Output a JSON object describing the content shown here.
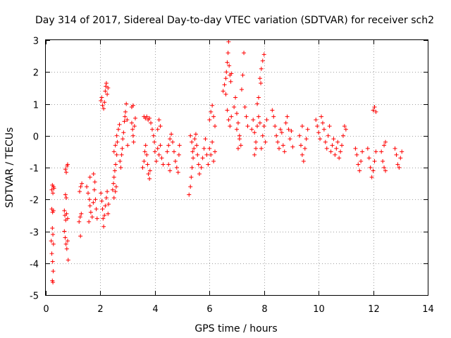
{
  "chart_data": {
    "type": "scatter",
    "title": "Day 314 of 2017, Sidereal Day-to-day VTEC variation (SDTVAR) for receiver sch2",
    "xlabel": "GPS time / hours",
    "ylabel": "SDTVAR / TECUs",
    "xlim": [
      0,
      14
    ],
    "ylim": [
      -5,
      3
    ],
    "xticks": [
      0,
      2,
      4,
      6,
      8,
      10,
      12,
      14
    ],
    "yticks": [
      -5,
      -4,
      -3,
      -2,
      -1,
      0,
      1,
      2,
      3
    ],
    "xtick_labels": [
      "0",
      "2",
      "4",
      "6",
      "8",
      "10",
      "12",
      "14"
    ],
    "ytick_labels": [
      "-5",
      "-4",
      "-3",
      "-2",
      "-1",
      "0",
      "1",
      "2",
      "3"
    ],
    "grid": true,
    "marker": "+",
    "color": "#ff0000",
    "series": [
      {
        "name": "sch2",
        "points": [
          [
            0.22,
            -1.7
          ],
          [
            0.24,
            -1.55
          ],
          [
            0.26,
            -1.8
          ],
          [
            0.28,
            -1.6
          ],
          [
            0.3,
            -1.65
          ],
          [
            0.22,
            -2.3
          ],
          [
            0.25,
            -2.4
          ],
          [
            0.28,
            -2.35
          ],
          [
            0.2,
            -3.3
          ],
          [
            0.24,
            -2.9
          ],
          [
            0.26,
            -3.1
          ],
          [
            0.28,
            -3.4
          ],
          [
            0.22,
            -3.7
          ],
          [
            0.25,
            -3.95
          ],
          [
            0.27,
            -4.25
          ],
          [
            0.24,
            -4.55
          ],
          [
            0.26,
            -4.6
          ],
          [
            0.72,
            -1.05
          ],
          [
            0.75,
            -1.15
          ],
          [
            0.78,
            -0.95
          ],
          [
            0.8,
            -0.9
          ],
          [
            0.68,
            -2.35
          ],
          [
            0.7,
            -2.5
          ],
          [
            0.73,
            -2.65
          ],
          [
            0.76,
            -2.45
          ],
          [
            0.8,
            -2.6
          ],
          [
            0.68,
            -3.0
          ],
          [
            0.71,
            -3.2
          ],
          [
            0.74,
            -3.4
          ],
          [
            0.77,
            -3.55
          ],
          [
            0.8,
            -3.3
          ],
          [
            0.82,
            -3.9
          ],
          [
            0.72,
            -1.85
          ],
          [
            0.75,
            -1.95
          ],
          [
            1.22,
            -2.7
          ],
          [
            1.26,
            -2.55
          ],
          [
            1.3,
            -2.45
          ],
          [
            1.24,
            -1.75
          ],
          [
            1.28,
            -1.6
          ],
          [
            1.32,
            -1.5
          ],
          [
            1.27,
            -3.15
          ],
          [
            1.5,
            -1.6
          ],
          [
            1.55,
            -1.8
          ],
          [
            1.6,
            -2.0
          ],
          [
            1.62,
            -2.2
          ],
          [
            1.65,
            -2.4
          ],
          [
            1.7,
            -2.55
          ],
          [
            1.58,
            -2.7
          ],
          [
            1.62,
            -1.3
          ],
          [
            1.75,
            -1.2
          ],
          [
            1.78,
            -1.7
          ],
          [
            1.82,
            -2.0
          ],
          [
            1.85,
            -2.3
          ],
          [
            1.88,
            -2.6
          ],
          [
            1.74,
            -2.1
          ],
          [
            1.8,
            -1.45
          ],
          [
            2.02,
            -1.8
          ],
          [
            2.05,
            -2.05
          ],
          [
            2.08,
            -2.3
          ],
          [
            2.1,
            -2.6
          ],
          [
            2.12,
            -2.85
          ],
          [
            2.15,
            -2.5
          ],
          [
            2.18,
            -2.2
          ],
          [
            2.22,
            -1.95
          ],
          [
            2.25,
            -1.75
          ],
          [
            2.28,
            -2.45
          ],
          [
            2.3,
            -2.15
          ],
          [
            2.02,
            1.1
          ],
          [
            2.05,
            1.2
          ],
          [
            2.08,
            0.95
          ],
          [
            2.12,
            0.85
          ],
          [
            2.15,
            1.05
          ],
          [
            2.18,
            1.4
          ],
          [
            2.2,
            1.55
          ],
          [
            2.22,
            1.65
          ],
          [
            2.25,
            1.3
          ],
          [
            2.28,
            1.5
          ],
          [
            2.45,
            -1.7
          ],
          [
            2.48,
            -1.5
          ],
          [
            2.5,
            -1.3
          ],
          [
            2.53,
            -1.1
          ],
          [
            2.56,
            -0.9
          ],
          [
            2.6,
            -0.6
          ],
          [
            2.5,
            -1.95
          ],
          [
            2.55,
            -1.75
          ],
          [
            2.58,
            -1.6
          ],
          [
            2.5,
            -0.5
          ],
          [
            2.55,
            -0.3
          ],
          [
            2.6,
            0.0
          ],
          [
            2.62,
            -0.2
          ],
          [
            2.66,
            0.2
          ],
          [
            2.7,
            0.35
          ],
          [
            2.72,
            -0.8
          ],
          [
            2.75,
            -1.0
          ],
          [
            2.78,
            -0.6
          ],
          [
            2.8,
            -0.4
          ],
          [
            2.82,
            -0.1
          ],
          [
            2.85,
            0.1
          ],
          [
            2.88,
            0.45
          ],
          [
            2.9,
            0.6
          ],
          [
            2.92,
            0.75
          ],
          [
            2.95,
            1.0
          ],
          [
            2.98,
            0.5
          ],
          [
            3.0,
            -0.3
          ],
          [
            3.15,
            0.4
          ],
          [
            3.18,
            0.2
          ],
          [
            3.2,
            0.0
          ],
          [
            3.22,
            -0.2
          ],
          [
            3.25,
            0.3
          ],
          [
            3.28,
            0.55
          ],
          [
            3.15,
            0.9
          ],
          [
            3.2,
            0.95
          ],
          [
            3.55,
            -1.0
          ],
          [
            3.6,
            -0.8
          ],
          [
            3.63,
            -0.5
          ],
          [
            3.66,
            -0.3
          ],
          [
            3.7,
            -0.6
          ],
          [
            3.73,
            -0.9
          ],
          [
            3.76,
            -1.2
          ],
          [
            3.8,
            -1.35
          ],
          [
            3.82,
            -1.1
          ],
          [
            3.6,
            0.6
          ],
          [
            3.65,
            0.55
          ],
          [
            3.7,
            0.6
          ],
          [
            3.75,
            0.5
          ],
          [
            3.8,
            0.55
          ],
          [
            3.85,
            0.4
          ],
          [
            3.9,
            0.2
          ],
          [
            3.95,
            0.0
          ],
          [
            3.98,
            -0.2
          ],
          [
            4.0,
            -0.5
          ],
          [
            4.05,
            -0.8
          ],
          [
            4.1,
            -0.4
          ],
          [
            4.15,
            -0.6
          ],
          [
            4.2,
            -0.3
          ],
          [
            4.25,
            -0.7
          ],
          [
            4.3,
            -0.9
          ],
          [
            4.1,
            0.2
          ],
          [
            4.15,
            0.5
          ],
          [
            4.2,
            0.3
          ],
          [
            4.45,
            -0.5
          ],
          [
            4.5,
            -0.3
          ],
          [
            4.55,
            -0.1
          ],
          [
            4.6,
            0.05
          ],
          [
            4.65,
            -0.2
          ],
          [
            4.7,
            -0.5
          ],
          [
            4.75,
            -0.8
          ],
          [
            4.8,
            -1.0
          ],
          [
            4.85,
            -1.15
          ],
          [
            4.88,
            -0.6
          ],
          [
            4.9,
            -0.3
          ],
          [
            4.5,
            -0.9
          ],
          [
            4.55,
            -1.1
          ],
          [
            5.25,
            -1.85
          ],
          [
            5.3,
            -1.6
          ],
          [
            5.33,
            -1.3
          ],
          [
            5.36,
            -1.0
          ],
          [
            5.4,
            -0.7
          ],
          [
            5.43,
            -0.4
          ],
          [
            5.46,
            -0.1
          ],
          [
            5.5,
            0.05
          ],
          [
            5.53,
            -0.3
          ],
          [
            5.56,
            -0.6
          ],
          [
            5.6,
            -0.9
          ],
          [
            5.63,
            -1.2
          ],
          [
            5.3,
            0.0
          ],
          [
            5.35,
            -0.2
          ],
          [
            5.38,
            -0.5
          ],
          [
            5.7,
            -1.0
          ],
          [
            5.75,
            -0.7
          ],
          [
            5.8,
            -0.4
          ],
          [
            5.85,
            -0.1
          ],
          [
            5.9,
            -0.6
          ],
          [
            5.95,
            -0.9
          ],
          [
            6.0,
            0.5
          ],
          [
            6.05,
            0.75
          ],
          [
            6.1,
            0.95
          ],
          [
            6.15,
            0.6
          ],
          [
            6.2,
            0.3
          ],
          [
            6.0,
            -0.4
          ],
          [
            6.05,
            -0.6
          ],
          [
            6.1,
            -0.2
          ],
          [
            6.15,
            -0.8
          ],
          [
            6.2,
            -0.5
          ],
          [
            6.5,
            1.4
          ],
          [
            6.55,
            1.6
          ],
          [
            6.6,
            1.8
          ],
          [
            6.62,
            2.0
          ],
          [
            6.65,
            2.3
          ],
          [
            6.68,
            2.6
          ],
          [
            6.7,
            2.95
          ],
          [
            6.72,
            2.2
          ],
          [
            6.75,
            1.9
          ],
          [
            6.78,
            1.7
          ],
          [
            6.8,
            1.95
          ],
          [
            6.6,
            1.3
          ],
          [
            6.65,
            0.8
          ],
          [
            6.7,
            0.5
          ],
          [
            6.75,
            0.3
          ],
          [
            6.8,
            0.6
          ],
          [
            6.9,
            0.9
          ],
          [
            6.95,
            1.2
          ],
          [
            7.0,
            0.7
          ],
          [
            7.05,
            0.4
          ],
          [
            7.1,
            -0.1
          ],
          [
            7.15,
            -0.3
          ],
          [
            7.0,
            0.2
          ],
          [
            7.05,
            -0.4
          ],
          [
            7.1,
            0.0
          ],
          [
            7.18,
            1.45
          ],
          [
            7.22,
            1.9
          ],
          [
            7.26,
            2.6
          ],
          [
            7.3,
            0.9
          ],
          [
            7.35,
            0.6
          ],
          [
            7.4,
            0.3
          ],
          [
            7.55,
            0.2
          ],
          [
            7.6,
            0.5
          ],
          [
            7.65,
            0.1
          ],
          [
            7.7,
            -0.2
          ],
          [
            7.75,
            0.3
          ],
          [
            7.8,
            0.6
          ],
          [
            7.85,
            0.4
          ],
          [
            7.9,
            -0.4
          ],
          [
            7.95,
            0.0
          ],
          [
            8.0,
            0.3
          ],
          [
            8.05,
            -0.2
          ],
          [
            8.1,
            0.5
          ],
          [
            7.65,
            -0.6
          ],
          [
            7.7,
            -0.4
          ],
          [
            7.75,
            1.0
          ],
          [
            7.8,
            1.2
          ],
          [
            7.85,
            1.8
          ],
          [
            7.9,
            2.1
          ],
          [
            7.95,
            2.35
          ],
          [
            8.0,
            2.55
          ],
          [
            7.88,
            1.65
          ],
          [
            8.3,
            0.8
          ],
          [
            8.35,
            0.6
          ],
          [
            8.4,
            0.3
          ],
          [
            8.45,
            0.0
          ],
          [
            8.5,
            -0.2
          ],
          [
            8.55,
            -0.4
          ],
          [
            8.6,
            0.2
          ],
          [
            8.65,
            0.1
          ],
          [
            8.7,
            -0.3
          ],
          [
            8.75,
            -0.5
          ],
          [
            8.8,
            0.4
          ],
          [
            8.85,
            0.6
          ],
          [
            8.9,
            0.2
          ],
          [
            8.95,
            -0.1
          ],
          [
            9.0,
            0.15
          ],
          [
            9.05,
            -0.35
          ],
          [
            9.3,
            0.0
          ],
          [
            9.35,
            -0.3
          ],
          [
            9.4,
            -0.6
          ],
          [
            9.45,
            -0.8
          ],
          [
            9.5,
            -0.4
          ],
          [
            9.55,
            -0.1
          ],
          [
            9.6,
            0.2
          ],
          [
            9.4,
            0.3
          ],
          [
            9.9,
            0.5
          ],
          [
            9.95,
            0.3
          ],
          [
            10.0,
            0.1
          ],
          [
            10.05,
            -0.1
          ],
          [
            10.1,
            0.6
          ],
          [
            10.15,
            0.4
          ],
          [
            10.2,
            0.2
          ],
          [
            10.25,
            -0.2
          ],
          [
            10.3,
            -0.4
          ],
          [
            10.35,
            0.0
          ],
          [
            10.4,
            0.3
          ],
          [
            10.45,
            -0.5
          ],
          [
            10.5,
            -0.3
          ],
          [
            10.55,
            -0.1
          ],
          [
            10.6,
            -0.6
          ],
          [
            10.65,
            -0.4
          ],
          [
            10.7,
            -0.2
          ],
          [
            10.75,
            -0.7
          ],
          [
            10.8,
            -0.5
          ],
          [
            10.85,
            -0.3
          ],
          [
            10.9,
            0.0
          ],
          [
            10.95,
            0.3
          ],
          [
            11.0,
            0.2
          ],
          [
            11.35,
            -0.4
          ],
          [
            11.4,
            -0.6
          ],
          [
            11.45,
            -0.9
          ],
          [
            11.5,
            -1.1
          ],
          [
            11.55,
            -0.8
          ],
          [
            11.6,
            -0.5
          ],
          [
            11.8,
            -0.4
          ],
          [
            11.85,
            -0.7
          ],
          [
            11.9,
            -1.0
          ],
          [
            11.95,
            -1.3
          ],
          [
            12.0,
            -1.1
          ],
          [
            12.05,
            -0.8
          ],
          [
            12.1,
            -0.5
          ],
          [
            12.0,
            0.8
          ],
          [
            12.05,
            0.9
          ],
          [
            12.1,
            0.75
          ],
          [
            12.3,
            -0.5
          ],
          [
            12.35,
            -0.8
          ],
          [
            12.4,
            -1.0
          ],
          [
            12.45,
            -1.1
          ],
          [
            12.4,
            -0.3
          ],
          [
            12.45,
            -0.2
          ],
          [
            12.8,
            -0.4
          ],
          [
            12.85,
            -0.6
          ],
          [
            12.9,
            -0.9
          ],
          [
            12.95,
            -1.0
          ],
          [
            13.0,
            -0.7
          ],
          [
            13.05,
            -0.5
          ]
        ]
      }
    ]
  }
}
